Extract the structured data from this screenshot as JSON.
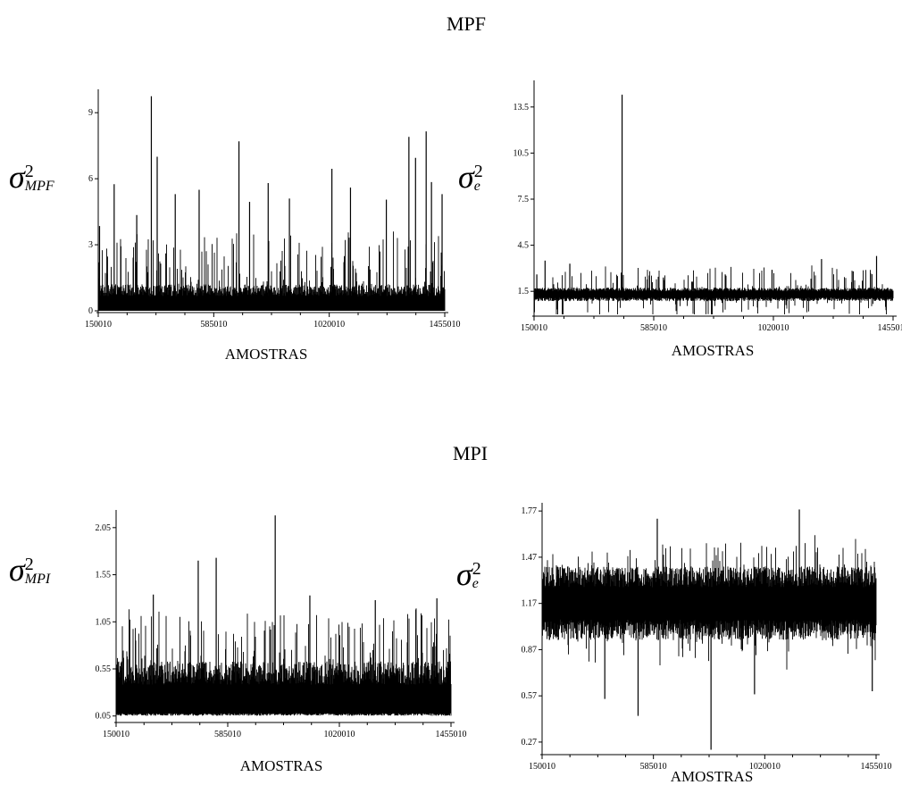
{
  "sections": {
    "mpf": "MPF",
    "mpi": "MPI"
  },
  "chart_data": [
    {
      "type": "line",
      "id": "mpf-var",
      "section": "MPF",
      "ylabel": {
        "symbol": "σ",
        "sup": "2",
        "sub": "MPF"
      },
      "xlabel": "AMOSTRAS",
      "xticks": [
        "150010",
        "585010",
        "1020010",
        "1455010"
      ],
      "yticks": [
        "0",
        "3",
        "6",
        "9"
      ],
      "xlim": [
        150010,
        1455010
      ],
      "ylim": [
        0,
        9.9
      ],
      "noise": {
        "baseline": 0.0,
        "band": 1.2,
        "spike_max": 2.6
      },
      "peaks": [
        {
          "x": 155010,
          "y": 3.85
        },
        {
          "x": 210010,
          "y": 5.75
        },
        {
          "x": 295010,
          "y": 4.35
        },
        {
          "x": 350010,
          "y": 9.75
        },
        {
          "x": 372010,
          "y": 7.0
        },
        {
          "x": 440010,
          "y": 5.3
        },
        {
          "x": 530010,
          "y": 5.5
        },
        {
          "x": 680010,
          "y": 7.7
        },
        {
          "x": 720010,
          "y": 4.95
        },
        {
          "x": 790010,
          "y": 5.8
        },
        {
          "x": 870010,
          "y": 5.1
        },
        {
          "x": 1030010,
          "y": 6.45
        },
        {
          "x": 1100010,
          "y": 5.6
        },
        {
          "x": 1235010,
          "y": 5.05
        },
        {
          "x": 1320010,
          "y": 7.9
        },
        {
          "x": 1345010,
          "y": 6.95
        },
        {
          "x": 1385010,
          "y": 8.15
        },
        {
          "x": 1405010,
          "y": 5.85
        },
        {
          "x": 1445010,
          "y": 5.3
        }
      ]
    },
    {
      "type": "line",
      "id": "mpf-err",
      "section": "MPF",
      "ylabel": {
        "symbol": "σ",
        "sup": "2",
        "sub": "e"
      },
      "xlabel": "AMOSTRAS",
      "xticks": [
        "150010",
        "585010",
        "1020010",
        "1455010"
      ],
      "yticks": [
        "1.5",
        "4.5",
        "7.5",
        "10.5",
        "13.5"
      ],
      "xlim": [
        150010,
        1455010
      ],
      "ylim": [
        0.0,
        15.0
      ],
      "noise": {
        "baseline": 1.3,
        "band": 0.55,
        "spike_max": 1.5
      },
      "peaks": [
        {
          "x": 160010,
          "y": 2.6
        },
        {
          "x": 190010,
          "y": 3.5
        },
        {
          "x": 280010,
          "y": 3.3
        },
        {
          "x": 470010,
          "y": 14.3
        },
        {
          "x": 620010,
          "y": 2.4
        },
        {
          "x": 845010,
          "y": 2.6
        },
        {
          "x": 1015010,
          "y": 2.9
        },
        {
          "x": 1195010,
          "y": 3.6
        },
        {
          "x": 1310010,
          "y": 2.8
        },
        {
          "x": 1395010,
          "y": 3.8
        }
      ]
    },
    {
      "type": "line",
      "id": "mpi-var",
      "section": "MPI",
      "ylabel": {
        "symbol": "σ",
        "sup": "2",
        "sub": "MPI"
      },
      "xlabel": "AMOSTRAS",
      "xticks": [
        "150010",
        "585010",
        "1020010",
        "1455010"
      ],
      "yticks": [
        "0.05",
        "0.55",
        "1.05",
        "1.55",
        "2.05"
      ],
      "xlim": [
        150010,
        1455010
      ],
      "ylim": [
        0.0,
        2.2
      ],
      "noise": {
        "baseline": 0.08,
        "band": 0.55,
        "spike_max": 0.65
      },
      "peaks": [
        {
          "x": 295010,
          "y": 1.34
        },
        {
          "x": 470010,
          "y": 1.7
        },
        {
          "x": 540010,
          "y": 1.73
        },
        {
          "x": 770010,
          "y": 2.18
        },
        {
          "x": 905010,
          "y": 1.33
        },
        {
          "x": 1160010,
          "y": 1.28
        },
        {
          "x": 1400010,
          "y": 1.3
        }
      ]
    },
    {
      "type": "line",
      "id": "mpi-err",
      "section": "MPI",
      "ylabel": {
        "symbol": "σ",
        "sup": "2",
        "sub": "e"
      },
      "xlabel": "AMOSTRAS",
      "xticks": [
        "150010",
        "585010",
        "1020010",
        "1455010"
      ],
      "yticks": [
        "0.27",
        "0.57",
        "0.87",
        "1.17",
        "1.47",
        "1.77"
      ],
      "xlim": [
        150010,
        1455010
      ],
      "ylim": [
        0.2,
        1.8
      ],
      "noise": {
        "baseline": 1.17,
        "band": 0.3,
        "spike_max": 0.22
      },
      "peaks": [
        {
          "x": 1155010,
          "y": 1.78
        },
        {
          "x": 600010,
          "y": 1.72
        }
      ],
      "troughs": [
        {
          "x": 525010,
          "y": 0.44
        },
        {
          "x": 810010,
          "y": 0.22
        },
        {
          "x": 395010,
          "y": 0.55
        },
        {
          "x": 980010,
          "y": 0.58
        },
        {
          "x": 1440010,
          "y": 0.6
        }
      ]
    }
  ]
}
